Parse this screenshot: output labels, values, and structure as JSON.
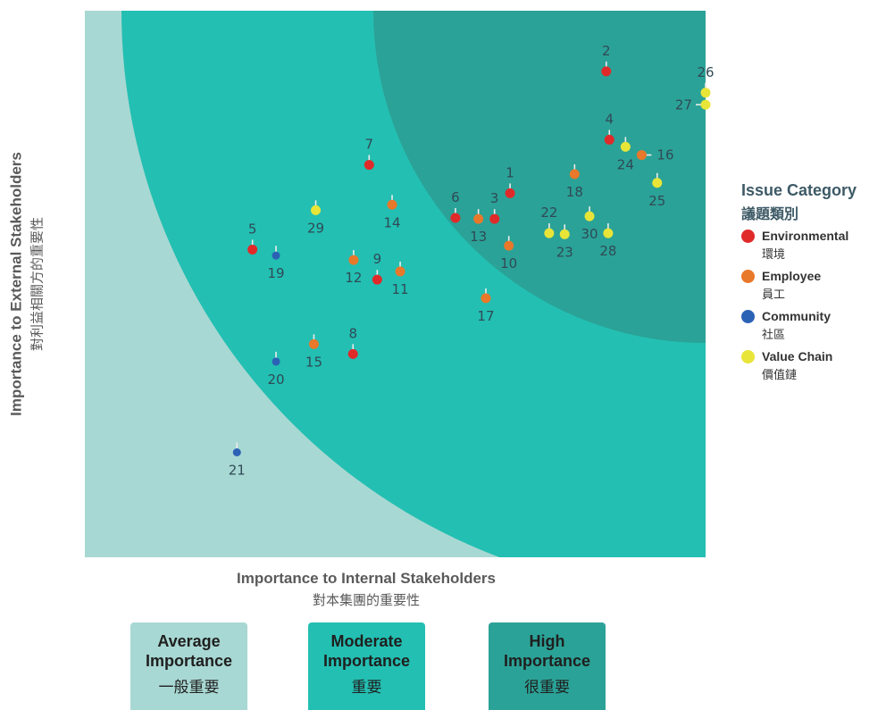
{
  "chart_data": {
    "type": "scatter",
    "xlabel": "Importance to Internal Stakeholders",
    "xlabel_zh": "對本集團的重要性",
    "ylabel": "Importance to External Stakeholders",
    "ylabel_zh": "對利益相關方的重要性",
    "xlim": [
      0,
      100
    ],
    "ylim": [
      0,
      100
    ],
    "grid": false,
    "legend_position": "right",
    "zones": [
      {
        "name": "Average Importance",
        "name_zh": "一般重要",
        "color": "#a8d8d3"
      },
      {
        "name": "Moderate Importance",
        "name_zh": "重要",
        "color": "#23bfb2"
      },
      {
        "name": "High Importance",
        "name_zh": "很重要",
        "color": "#2ba297"
      }
    ],
    "legend_title": "Issue Category",
    "legend_title_zh": "議題類別",
    "categories": [
      {
        "key": "env",
        "name": "Environmental",
        "name_zh": "環境",
        "color": "#e02a2a"
      },
      {
        "key": "emp",
        "name": "Employee",
        "name_zh": "員工",
        "color": "#e8782a"
      },
      {
        "key": "com",
        "name": "Community",
        "name_zh": "社區",
        "color": "#2b62b5"
      },
      {
        "key": "val",
        "name": "Value Chain",
        "name_zh": "價值鏈",
        "color": "#e8e538"
      }
    ],
    "points": [
      {
        "id": "1",
        "cat": "env",
        "x": 68.5,
        "y": 66.6,
        "label_pos": "above"
      },
      {
        "id": "2",
        "cat": "env",
        "x": 84.0,
        "y": 88.9,
        "label_pos": "above"
      },
      {
        "id": "3",
        "cat": "env",
        "x": 66.0,
        "y": 61.9,
        "label_pos": "above"
      },
      {
        "id": "4",
        "cat": "env",
        "x": 84.5,
        "y": 76.4,
        "label_pos": "above"
      },
      {
        "id": "5",
        "cat": "env",
        "x": 27.0,
        "y": 56.3,
        "label_pos": "above"
      },
      {
        "id": "6",
        "cat": "env",
        "x": 59.7,
        "y": 62.1,
        "label_pos": "above"
      },
      {
        "id": "7",
        "cat": "env",
        "x": 45.8,
        "y": 71.8,
        "label_pos": "above"
      },
      {
        "id": "8",
        "cat": "env",
        "x": 43.2,
        "y": 37.2,
        "label_pos": "above"
      },
      {
        "id": "9",
        "cat": "env",
        "x": 47.1,
        "y": 50.8,
        "label_pos": "above"
      },
      {
        "id": "10",
        "cat": "emp",
        "x": 68.3,
        "y": 57.0,
        "label_pos": "below"
      },
      {
        "id": "11",
        "cat": "emp",
        "x": 50.8,
        "y": 52.3,
        "label_pos": "below"
      },
      {
        "id": "12",
        "cat": "emp",
        "x": 43.3,
        "y": 54.4,
        "label_pos": "below"
      },
      {
        "id": "13",
        "cat": "emp",
        "x": 63.4,
        "y": 61.9,
        "label_pos": "below"
      },
      {
        "id": "14",
        "cat": "emp",
        "x": 49.5,
        "y": 64.5,
        "label_pos": "below"
      },
      {
        "id": "15",
        "cat": "emp",
        "x": 36.9,
        "y": 39.0,
        "label_pos": "below"
      },
      {
        "id": "16",
        "cat": "emp",
        "x": 89.7,
        "y": 73.6,
        "label_pos": "right"
      },
      {
        "id": "17",
        "cat": "emp",
        "x": 64.6,
        "y": 47.4,
        "label_pos": "below"
      },
      {
        "id": "18",
        "cat": "emp",
        "x": 78.9,
        "y": 70.1,
        "label_pos": "below"
      },
      {
        "id": "19",
        "cat": "com",
        "x": 30.8,
        "y": 55.2,
        "label_pos": "below"
      },
      {
        "id": "20",
        "cat": "com",
        "x": 30.8,
        "y": 35.8,
        "label_pos": "below"
      },
      {
        "id": "21",
        "cat": "com",
        "x": 24.5,
        "y": 19.2,
        "label_pos": "below"
      },
      {
        "id": "22",
        "cat": "val",
        "x": 74.8,
        "y": 59.3,
        "label_pos": "above"
      },
      {
        "id": "23",
        "cat": "val",
        "x": 77.3,
        "y": 59.1,
        "label_pos": "below"
      },
      {
        "id": "24",
        "cat": "val",
        "x": 87.1,
        "y": 75.1,
        "label_pos": "below"
      },
      {
        "id": "25",
        "cat": "val",
        "x": 92.2,
        "y": 68.5,
        "label_pos": "below"
      },
      {
        "id": "26",
        "cat": "val",
        "x": 100.0,
        "y": 85.0,
        "label_pos": "above"
      },
      {
        "id": "27",
        "cat": "val",
        "x": 100.0,
        "y": 82.8,
        "label_pos": "left"
      },
      {
        "id": "28",
        "cat": "val",
        "x": 84.3,
        "y": 59.3,
        "label_pos": "below"
      },
      {
        "id": "29",
        "cat": "val",
        "x": 37.2,
        "y": 63.5,
        "label_pos": "below"
      },
      {
        "id": "30",
        "cat": "val",
        "x": 81.3,
        "y": 62.4,
        "label_pos": "below"
      }
    ]
  }
}
